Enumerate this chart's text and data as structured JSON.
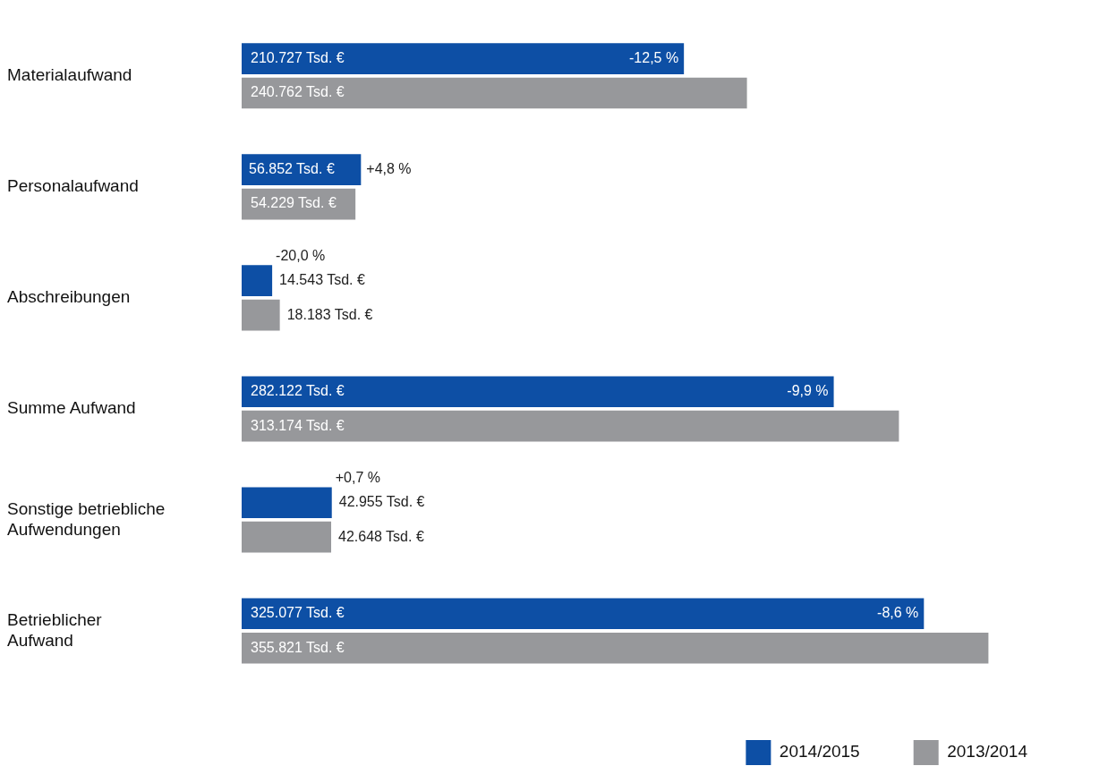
{
  "chart_data": {
    "type": "bar",
    "orientation": "horizontal",
    "categories": [
      "Materialaufwand",
      "Personalaufwand",
      "Abschreibungen",
      "Summe Aufwand",
      "Sonstige betriebliche Aufwendungen",
      "Betrieblicher Aufwand"
    ],
    "series": [
      {
        "name": "2014/2015",
        "color": "#0d4fa5",
        "values": [
          210727,
          56852,
          14543,
          282122,
          42955,
          325077
        ],
        "value_labels": [
          "210.727 Tsd. €",
          "56.852 Tsd. €",
          "14.543 Tsd. €",
          "282.122 Tsd. €",
          "42.955 Tsd. €",
          "325.077 Tsd. €"
        ]
      },
      {
        "name": "2013/2014",
        "color": "#97989b",
        "values": [
          240762,
          54229,
          18183,
          313174,
          42648,
          355821
        ],
        "value_labels": [
          "240.762 Tsd. €",
          "54.229 Tsd. €",
          "18.183 Tsd. €",
          "313.174 Tsd. €",
          "42.648 Tsd. €",
          "355.821 Tsd. €"
        ]
      }
    ],
    "annotations": [
      {
        "text": "-12,5 %",
        "x": 210727,
        "y": "Materialaufwand"
      },
      {
        "text": "+4,8 %",
        "x": 56852,
        "y": "Personalaufwand"
      },
      {
        "text": "-20,0 %",
        "x": 14543,
        "y": "Abschreibungen"
      },
      {
        "text": "-9,9 %",
        "x": 282122,
        "y": "Summe Aufwand"
      },
      {
        "text": "+0,7 %",
        "x": 42955,
        "y": "Sonstige betriebliche Aufwendungen"
      },
      {
        "text": "-8,6 %",
        "x": 325077,
        "y": "Betrieblicher Aufwand"
      }
    ],
    "legend": "bottom right",
    "grid": false
  }
}
